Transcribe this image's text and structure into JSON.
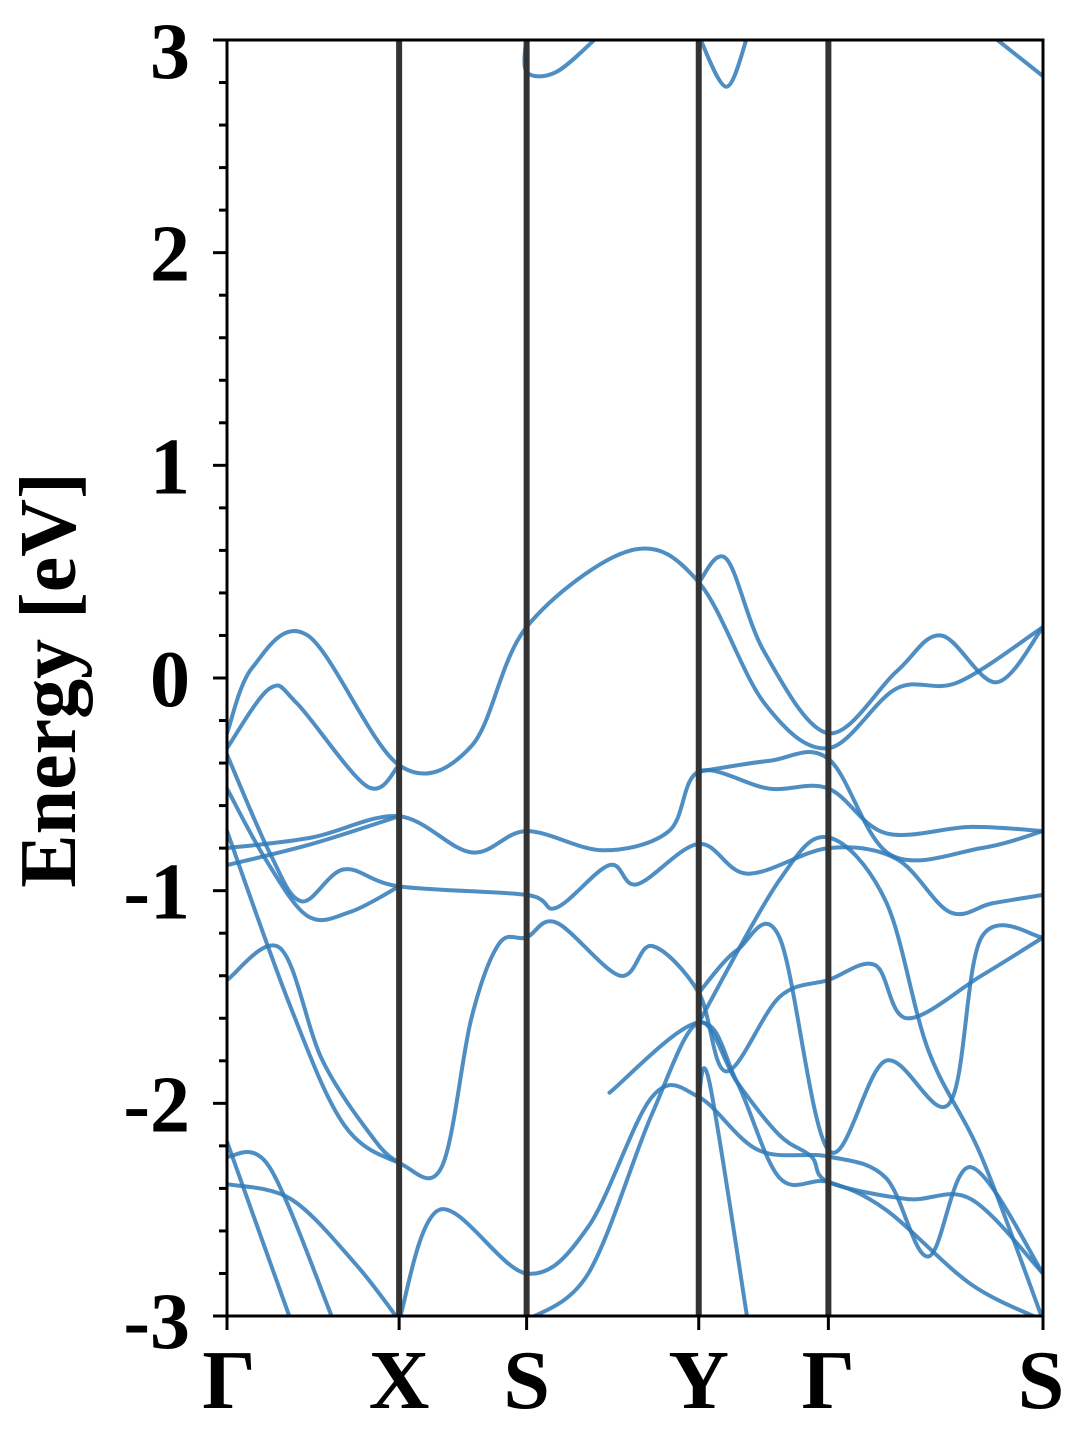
{
  "chart_data": {
    "type": "line",
    "title": "",
    "xlabel": "",
    "ylabel": "Energy [eV]",
    "ylim": [
      -3,
      3
    ],
    "y_ticks": [
      "-3",
      "-2",
      "-1",
      "0",
      "1",
      "2",
      "3"
    ],
    "x_range": [
      0,
      3.84
    ],
    "high_symmetry_points": [
      {
        "label": "Γ",
        "x": 0.0
      },
      {
        "label": "X",
        "x": 0.81
      },
      {
        "label": "S",
        "x": 1.41
      },
      {
        "label": "Y",
        "x": 2.22
      },
      {
        "label": "Γ",
        "x": 2.83
      },
      {
        "label": "S",
        "x": 3.84
      }
    ],
    "grid": false,
    "legend": "none",
    "colors": {
      "band": "#2f7ab8",
      "vline": "#333333",
      "axis": "#000000"
    },
    "bands": [
      {
        "points": [
          [
            0,
            -0.26
          ],
          [
            0.12,
            0.05
          ],
          [
            0.38,
            0.2
          ],
          [
            0.81,
            -0.41
          ],
          [
            1.15,
            -0.32
          ],
          [
            1.41,
            0.24
          ],
          [
            1.9,
            0.6
          ],
          [
            2.22,
            0.45
          ],
          [
            2.53,
            -0.12
          ],
          [
            2.83,
            -0.33
          ],
          [
            3.15,
            -0.05
          ],
          [
            3.44,
            -0.02
          ],
          [
            3.84,
            0.24
          ]
        ]
      },
      {
        "points": [
          [
            0,
            -0.33
          ],
          [
            0.2,
            -0.05
          ],
          [
            0.33,
            -0.12
          ],
          [
            0.66,
            -0.51
          ],
          [
            0.81,
            -0.41
          ]
        ]
      },
      {
        "points": [
          [
            2.22,
            0.45
          ],
          [
            2.35,
            0.56
          ],
          [
            2.53,
            0.12
          ],
          [
            2.83,
            -0.26
          ],
          [
            3.15,
            0.03
          ],
          [
            3.36,
            0.2
          ],
          [
            3.62,
            -0.02
          ],
          [
            3.84,
            0.24
          ]
        ]
      },
      {
        "points": [
          [
            0,
            -0.36
          ],
          [
            0.2,
            -0.82
          ],
          [
            0.35,
            -1.05
          ],
          [
            0.55,
            -0.9
          ],
          [
            0.81,
            -0.98
          ],
          [
            1.41,
            -1.02
          ],
          [
            1.55,
            -1.08
          ],
          [
            1.8,
            -0.88
          ],
          [
            1.93,
            -0.97
          ],
          [
            2.22,
            -0.78
          ],
          [
            2.45,
            -0.92
          ],
          [
            2.83,
            -0.8
          ],
          [
            3.15,
            -0.85
          ],
          [
            3.4,
            -1.1
          ],
          [
            3.6,
            -1.06
          ],
          [
            3.84,
            -1.02
          ]
        ]
      },
      {
        "points": [
          [
            0,
            -0.52
          ],
          [
            0.18,
            -0.85
          ],
          [
            0.38,
            -1.12
          ],
          [
            0.58,
            -1.1
          ],
          [
            0.81,
            -0.98
          ]
        ]
      },
      {
        "points": [
          [
            0,
            -0.8
          ],
          [
            0.4,
            -0.75
          ],
          [
            0.81,
            -0.65
          ],
          [
            1.15,
            -0.82
          ],
          [
            1.41,
            -0.72
          ],
          [
            1.77,
            -0.81
          ],
          [
            2.08,
            -0.72
          ],
          [
            2.22,
            -0.44
          ],
          [
            2.55,
            -0.52
          ],
          [
            2.83,
            -0.52
          ],
          [
            3.1,
            -0.73
          ],
          [
            3.5,
            -0.7
          ],
          [
            3.84,
            -0.72
          ]
        ]
      },
      {
        "points": [
          [
            0,
            -0.88
          ],
          [
            0.4,
            -0.78
          ],
          [
            0.81,
            -0.65
          ]
        ]
      },
      {
        "points": [
          [
            2.22,
            -0.44
          ],
          [
            2.55,
            -0.39
          ],
          [
            2.83,
            -0.38
          ],
          [
            3.12,
            -0.83
          ],
          [
            3.55,
            -0.8
          ],
          [
            3.84,
            -0.72
          ]
        ]
      },
      {
        "points": [
          [
            0,
            -0.72
          ],
          [
            0.3,
            -1.55
          ],
          [
            0.55,
            -2.1
          ],
          [
            0.81,
            -2.28
          ],
          [
            1.01,
            -2.3
          ],
          [
            1.15,
            -1.6
          ],
          [
            1.28,
            -1.25
          ],
          [
            1.41,
            -1.22
          ],
          [
            1.55,
            -1.15
          ],
          [
            1.85,
            -1.4
          ],
          [
            2.0,
            -1.26
          ],
          [
            2.22,
            -1.48
          ],
          [
            2.35,
            -1.85
          ],
          [
            2.6,
            -1.5
          ],
          [
            2.83,
            -1.42
          ],
          [
            3.05,
            -1.35
          ],
          [
            3.2,
            -1.6
          ],
          [
            3.55,
            -1.4
          ],
          [
            3.84,
            -1.22
          ]
        ]
      },
      {
        "points": [
          [
            0,
            -1.42
          ],
          [
            0.25,
            -1.27
          ],
          [
            0.45,
            -1.8
          ],
          [
            0.7,
            -2.18
          ],
          [
            0.81,
            -2.28
          ]
        ]
      },
      {
        "points": [
          [
            2.22,
            -1.48
          ],
          [
            2.4,
            -1.28
          ],
          [
            2.6,
            -1.22
          ],
          [
            2.83,
            -2.22
          ],
          [
            3.1,
            -1.8
          ],
          [
            3.4,
            -2.0
          ],
          [
            3.55,
            -1.22
          ],
          [
            3.84,
            -1.22
          ]
        ]
      },
      {
        "points": [
          [
            0.81,
            -3.02
          ],
          [
            1.0,
            -2.5
          ],
          [
            1.41,
            -2.8
          ],
          [
            1.7,
            -2.58
          ],
          [
            2.0,
            -1.97
          ],
          [
            2.22,
            -1.97
          ],
          [
            2.5,
            -2.22
          ],
          [
            2.83,
            -2.25
          ],
          [
            3.1,
            -2.35
          ],
          [
            3.3,
            -2.72
          ],
          [
            3.5,
            -2.3
          ],
          [
            3.84,
            -2.8
          ]
        ]
      },
      {
        "points": [
          [
            1.41,
            -3.02
          ],
          [
            1.7,
            -2.8
          ],
          [
            2.0,
            -2.05
          ],
          [
            2.22,
            -1.62
          ],
          [
            2.4,
            -1.9
          ],
          [
            2.6,
            -2.15
          ],
          [
            2.75,
            -2.25
          ],
          [
            2.83,
            -2.37
          ],
          [
            3.2,
            -2.45
          ],
          [
            3.5,
            -2.45
          ],
          [
            3.84,
            -2.8
          ]
        ]
      },
      {
        "points": [
          [
            1.8,
            -1.95
          ],
          [
            2.22,
            -1.62
          ],
          [
            2.4,
            -1.9
          ],
          [
            2.6,
            -2.35
          ],
          [
            2.83,
            -2.37
          ],
          [
            3.1,
            -2.5
          ],
          [
            3.5,
            -2.85
          ],
          [
            3.84,
            -3.02
          ]
        ]
      },
      {
        "points": [
          [
            2.22,
            -1.62
          ],
          [
            2.6,
            -0.95
          ],
          [
            2.83,
            -0.75
          ],
          [
            3.1,
            -1.05
          ],
          [
            3.3,
            -1.75
          ],
          [
            3.55,
            -2.25
          ],
          [
            3.84,
            -3.02
          ]
        ]
      },
      {
        "points": [
          [
            2.22,
            -1.97
          ],
          [
            2.27,
            -1.9
          ],
          [
            2.45,
            -3.02
          ]
        ]
      },
      {
        "points": [
          [
            0,
            -2.18
          ],
          [
            0.3,
            -3.02
          ]
        ]
      },
      {
        "points": [
          [
            0,
            -2.25
          ],
          [
            0.2,
            -2.3
          ],
          [
            0.5,
            -3.02
          ]
        ]
      },
      {
        "points": [
          [
            0,
            -2.38
          ],
          [
            0.3,
            -2.45
          ],
          [
            0.6,
            -2.75
          ],
          [
            0.81,
            -3.02
          ]
        ]
      },
      {
        "points": [
          [
            1.41,
            3.02
          ],
          [
            1.41,
            2.85
          ],
          [
            1.55,
            2.85
          ],
          [
            1.75,
            3.02
          ]
        ]
      },
      {
        "points": [
          [
            2.22,
            3.02
          ],
          [
            2.35,
            2.78
          ],
          [
            2.45,
            3.02
          ]
        ]
      },
      {
        "points": [
          [
            3.6,
            3.02
          ],
          [
            3.84,
            2.83
          ]
        ]
      }
    ]
  }
}
